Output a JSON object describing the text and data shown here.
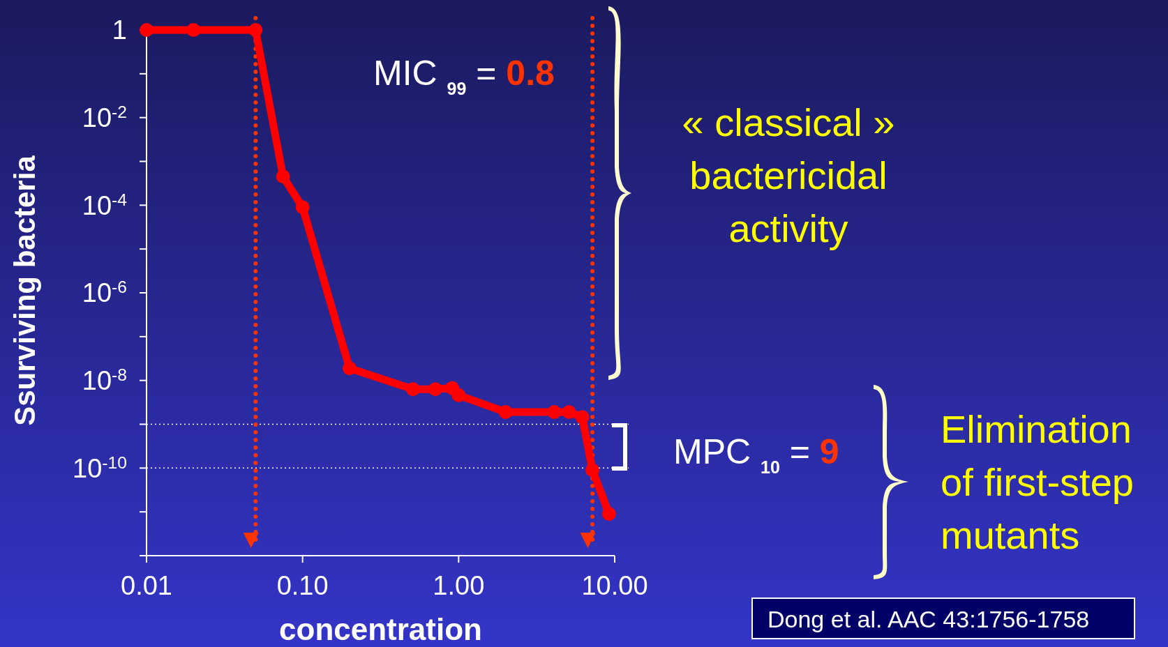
{
  "chart_data": {
    "type": "line",
    "xlabel": "concentration",
    "ylabel": "Ssurviving bacteria",
    "log": "xy",
    "xlim": [
      0.01,
      10
    ],
    "ylim": [
      1e-12,
      1
    ],
    "xticks": [
      0.01,
      {
        "value": 0.1,
        "label": "0.10"
      },
      {
        "value": 1,
        "label": "1.00"
      },
      {
        "value": 10,
        "label": "10.00"
      }
    ],
    "yticks": [
      1,
      {
        "value": 0.1,
        "label": null
      },
      {
        "value": 0.01,
        "label": "10$^{-2}$"
      },
      {
        "value": 0.001,
        "label": null
      },
      {
        "value": 0.0001,
        "label": "10$^{-4}$"
      },
      {
        "value": 1e-05,
        "label": null
      },
      {
        "value": 1e-06,
        "label": "10$^{-6}$"
      },
      {
        "value": 1e-07,
        "label": null
      },
      {
        "value": 1e-08,
        "label": "10$^{-8}$"
      },
      {
        "value": 1e-09,
        "label": null
      },
      {
        "value": 1e-10,
        "label": "10$^{-10}$"
      },
      {
        "value": 1e-11,
        "label": null
      },
      {
        "value": 1e-12,
        "label": null
      }
    ],
    "series": [
      {
        "color": "#ff0000",
        "x": [
          0.01,
          0.02,
          0.05,
          0.075,
          0.1,
          0.2,
          0.51,
          0.71,
          0.91,
          1.0,
          2.0,
          4.1,
          5.1,
          6.2,
          7.2,
          9.2
        ],
        "values": [
          1,
          1,
          1,
          0.00045,
          9e-05,
          1.9e-08,
          6.3e-09,
          6.3e-09,
          6.7e-09,
          4.6e-09,
          1.9e-09,
          1.9e-09,
          1.9e-09,
          1.45e-09,
          9e-11,
          9e-12
        ]
      }
    ],
    "marker": "circle",
    "line_style": "solid",
    "ref_lines": [
      {
        "axis": "y",
        "value": 1e-09,
        "color": "#ffffff",
        "line_style": "dotted"
      },
      {
        "axis": "y",
        "value": 1e-10,
        "color": "#ffffff",
        "line_style": "dotted"
      },
      {
        "axis": "x",
        "value": 0.05,
        "color": "#ff3300",
        "line_style": "dotted"
      },
      {
        "axis": "x",
        "value": 7.2,
        "color": "#ff3300",
        "line_style": "dotted"
      }
    ],
    "annotations": [
      "MIC $_{99}$ = 0.8",
      "« classical »\nbactericidal\nactivity",
      "MPC $_{10}$ = 9",
      "Elimination\nof first-step\nmutants",
      "Dong et al. AAC 43:1756-1758"
    ]
  }
}
